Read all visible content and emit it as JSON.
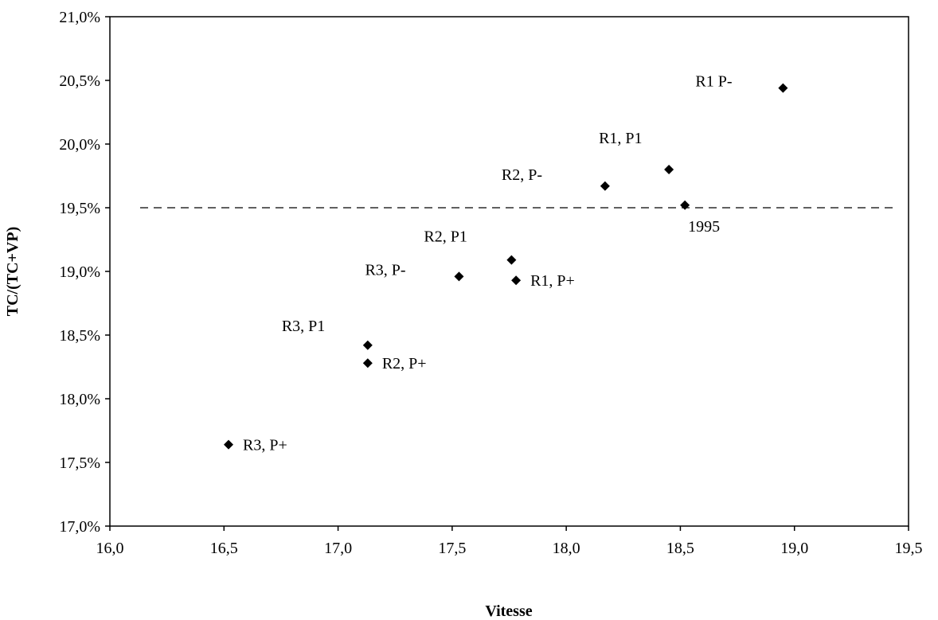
{
  "chart_data": {
    "type": "scatter",
    "title": "",
    "xlabel": "Vitesse",
    "ylabel": "TC/(TC+VP)",
    "xlim": [
      16.0,
      19.5
    ],
    "ylim": [
      0.17,
      0.21
    ],
    "x_ticks": [
      "16,0",
      "16,5",
      "17,0",
      "17,5",
      "18,0",
      "18,5",
      "19,0",
      "19,5"
    ],
    "y_ticks": [
      "17,0%",
      "17,5%",
      "18,0%",
      "18,5%",
      "19,0%",
      "19,5%",
      "20,0%",
      "20,5%",
      "21,0%"
    ],
    "grid": false,
    "legend": "none",
    "reference_line": {
      "y": 0.195,
      "style": "dashed"
    },
    "points": [
      {
        "label": "R1  P-",
        "x": 18.95,
        "y": 0.2044
      },
      {
        "label": "R1, P1",
        "x": 18.45,
        "y": 0.198
      },
      {
        "label": "R2, P-",
        "x": 18.17,
        "y": 0.1967
      },
      {
        "label": "1995",
        "x": 18.52,
        "y": 0.1952
      },
      {
        "label": "R2, P1",
        "x": 17.76,
        "y": 0.1909
      },
      {
        "label": "R3, P-",
        "x": 17.53,
        "y": 0.1896
      },
      {
        "label": "R1, P+",
        "x": 17.78,
        "y": 0.1893
      },
      {
        "label": "R3, P1",
        "x": 17.13,
        "y": 0.1842
      },
      {
        "label": "R2, P+",
        "x": 17.13,
        "y": 0.1828
      },
      {
        "label": "R3, P+",
        "x": 16.52,
        "y": 0.1764
      }
    ],
    "colors": {
      "marker": "#000000",
      "axis": "#000000"
    }
  }
}
